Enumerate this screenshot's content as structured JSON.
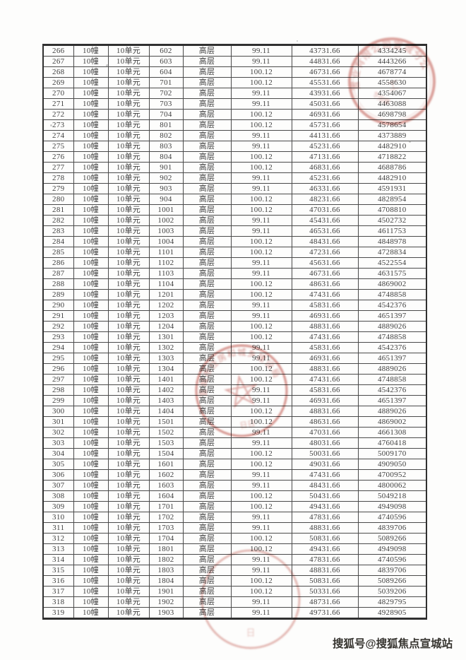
{
  "table": {
    "rows": [
      [
        "266",
        "10幢",
        "10单元",
        "602",
        "高层",
        "99.11",
        "43731.66",
        "4334245"
      ],
      [
        "267",
        "10幢",
        "10单元",
        "603",
        "高层",
        "99.11",
        "44831.66",
        "4443266"
      ],
      [
        "268",
        "10幢",
        "10单元",
        "604",
        "高层",
        "100.12",
        "46731.66",
        "4678774"
      ],
      [
        "269",
        "10幢",
        "10单元",
        "701",
        "高层",
        "100.12",
        "45531.66",
        "4558630"
      ],
      [
        "270",
        "10幢",
        "10单元",
        "702",
        "高层",
        "99.11",
        "43931.66",
        "4354067"
      ],
      [
        "271",
        "10幢",
        "10单元",
        "703",
        "高层",
        "99.11",
        "45031.66",
        "4463088"
      ],
      [
        "272",
        "10幢",
        "10单元",
        "704",
        "高层",
        "100.12",
        "46931.66",
        "4698798"
      ],
      [
        "273",
        "10幢",
        "10单元",
        "801",
        "高层",
        "100.12",
        "45731.66",
        "4578654"
      ],
      [
        "274",
        "10幢",
        "10单元",
        "802",
        "高层",
        "99.11",
        "44131.66",
        "4373889"
      ],
      [
        "275",
        "10幢",
        "10单元",
        "803",
        "高层",
        "99.11",
        "45231.66",
        "4482910"
      ],
      [
        "276",
        "10幢",
        "10单元",
        "804",
        "高层",
        "100.12",
        "47131.66",
        "4718822"
      ],
      [
        "277",
        "10幢",
        "10单元",
        "901",
        "高层",
        "100.12",
        "46831.66",
        "4688786"
      ],
      [
        "278",
        "10幢",
        "10单元",
        "902",
        "高层",
        "99.11",
        "45231.66",
        "4482910"
      ],
      [
        "279",
        "10幢",
        "10单元",
        "903",
        "高层",
        "99.11",
        "46331.66",
        "4591931"
      ],
      [
        "280",
        "10幢",
        "10单元",
        "904",
        "高层",
        "100.12",
        "48231.66",
        "4828954"
      ],
      [
        "281",
        "10幢",
        "10单元",
        "1001",
        "高层",
        "100.12",
        "47031.66",
        "4708810"
      ],
      [
        "282",
        "10幢",
        "10单元",
        "1002",
        "高层",
        "99.11",
        "45431.66",
        "4502732"
      ],
      [
        "283",
        "10幢",
        "10单元",
        "1003",
        "高层",
        "99.11",
        "46531.66",
        "4611753"
      ],
      [
        "284",
        "10幢",
        "10单元",
        "1004",
        "高层",
        "100.12",
        "48431.66",
        "4848978"
      ],
      [
        "285",
        "10幢",
        "10单元",
        "1101",
        "高层",
        "100.12",
        "47231.66",
        "4728834"
      ],
      [
        "286",
        "10幢",
        "10单元",
        "1102",
        "高层",
        "99.11",
        "45631.66",
        "4522554"
      ],
      [
        "287",
        "10幢",
        "10单元",
        "1103",
        "高层",
        "99.11",
        "46731.66",
        "4631575"
      ],
      [
        "288",
        "10幢",
        "10单元",
        "1104",
        "高层",
        "100.12",
        "48631.66",
        "4869002"
      ],
      [
        "289",
        "10幢",
        "10单元",
        "1201",
        "高层",
        "100.12",
        "47431.66",
        "4748858"
      ],
      [
        "290",
        "10幢",
        "10单元",
        "1202",
        "高层",
        "99.11",
        "45831.66",
        "4542376"
      ],
      [
        "291",
        "10幢",
        "10单元",
        "1203",
        "高层",
        "99.11",
        "46931.66",
        "4651397"
      ],
      [
        "292",
        "10幢",
        "10单元",
        "1204",
        "高层",
        "100.12",
        "48831.66",
        "4889026"
      ],
      [
        "293",
        "10幢",
        "10单元",
        "1301",
        "高层",
        "100.12",
        "47431.66",
        "4748858"
      ],
      [
        "294",
        "10幢",
        "10单元",
        "1302",
        "高层",
        "99.11",
        "45831.66",
        "4542376"
      ],
      [
        "295",
        "10幢",
        "10单元",
        "1303",
        "高层",
        "99.11",
        "46931.66",
        "4651397"
      ],
      [
        "296",
        "10幢",
        "10单元",
        "1304",
        "高层",
        "100.12",
        "48831.66",
        "4889026"
      ],
      [
        "297",
        "10幢",
        "10单元",
        "1401",
        "高层",
        "100.12",
        "47431.66",
        "4748858"
      ],
      [
        "298",
        "10幢",
        "10单元",
        "1402",
        "高层",
        "99.11",
        "45831.66",
        "4542376"
      ],
      [
        "299",
        "10幢",
        "10单元",
        "1403",
        "高层",
        "99.11",
        "46931.66",
        "4651397"
      ],
      [
        "300",
        "10幢",
        "10单元",
        "1404",
        "高层",
        "100.12",
        "48831.66",
        "4889026"
      ],
      [
        "301",
        "10幢",
        "10单元",
        "1501",
        "高层",
        "100.12",
        "48631.66",
        "4869002"
      ],
      [
        "302",
        "10幢",
        "10单元",
        "1502",
        "高层",
        "99.11",
        "47031.66",
        "4661308"
      ],
      [
        "303",
        "10幢",
        "10单元",
        "1503",
        "高层",
        "99.11",
        "48031.66",
        "4760418"
      ],
      [
        "304",
        "10幢",
        "10单元",
        "1504",
        "高层",
        "100.12",
        "50031.66",
        "5009170"
      ],
      [
        "305",
        "10幢",
        "10单元",
        "1601",
        "高层",
        "100.12",
        "49031.66",
        "4909050"
      ],
      [
        "306",
        "10幢",
        "10单元",
        "1602",
        "高层",
        "99.11",
        "47431.66",
        "4700952"
      ],
      [
        "307",
        "10幢",
        "10单元",
        "1603",
        "高层",
        "99.11",
        "48431.66",
        "4800062"
      ],
      [
        "308",
        "10幢",
        "10单元",
        "1604",
        "高层",
        "100.12",
        "50431.66",
        "5049218"
      ],
      [
        "309",
        "10幢",
        "10单元",
        "1701",
        "高层",
        "100.12",
        "49431.66",
        "4949098"
      ],
      [
        "310",
        "10幢",
        "10单元",
        "1702",
        "高层",
        "99.11",
        "47831.66",
        "4740596"
      ],
      [
        "311",
        "10幢",
        "10单元",
        "1703",
        "高层",
        "99.11",
        "48831.66",
        "4839706"
      ],
      [
        "312",
        "10幢",
        "10单元",
        "1704",
        "高层",
        "100.12",
        "50831.66",
        "5089266"
      ],
      [
        "313",
        "10幢",
        "10单元",
        "1801",
        "高层",
        "100.12",
        "49431.66",
        "4949098"
      ],
      [
        "314",
        "10幢",
        "10单元",
        "1802",
        "高层",
        "99.11",
        "47831.66",
        "4740596"
      ],
      [
        "315",
        "10幢",
        "10单元",
        "1803",
        "高层",
        "99.11",
        "48831.66",
        "4839706"
      ],
      [
        "316",
        "10幢",
        "10单元",
        "1804",
        "高层",
        "100.12",
        "50831.66",
        "5089266"
      ],
      [
        "317",
        "10幢",
        "10单元",
        "1901",
        "高层",
        "100.12",
        "50331.66",
        "5039206"
      ],
      [
        "318",
        "10幢",
        "10单元",
        "1902",
        "高层",
        "99.11",
        "48731.66",
        "4829795"
      ],
      [
        "319",
        "10幢",
        "10单元",
        "1903",
        "高层",
        "99.11",
        "49731.66",
        "4928905"
      ]
    ]
  },
  "stamps": {
    "top_right": {
      "arc_text": "置业有限公司宣城分公司",
      "bottom_text": "专用章",
      "center_text": "工"
    },
    "middle": {
      "arc_text": "宣城市住房和城乡建设局",
      "bottom_text": "日日"
    },
    "bottom": {
      "mark_text": "日"
    }
  },
  "watermark": {
    "text": "搜狐号@搜狐焦点宣城站"
  },
  "colors": {
    "stamp_red": "#c0544c",
    "table_line": "#4a4a4a",
    "text": "#3f3f3f"
  }
}
